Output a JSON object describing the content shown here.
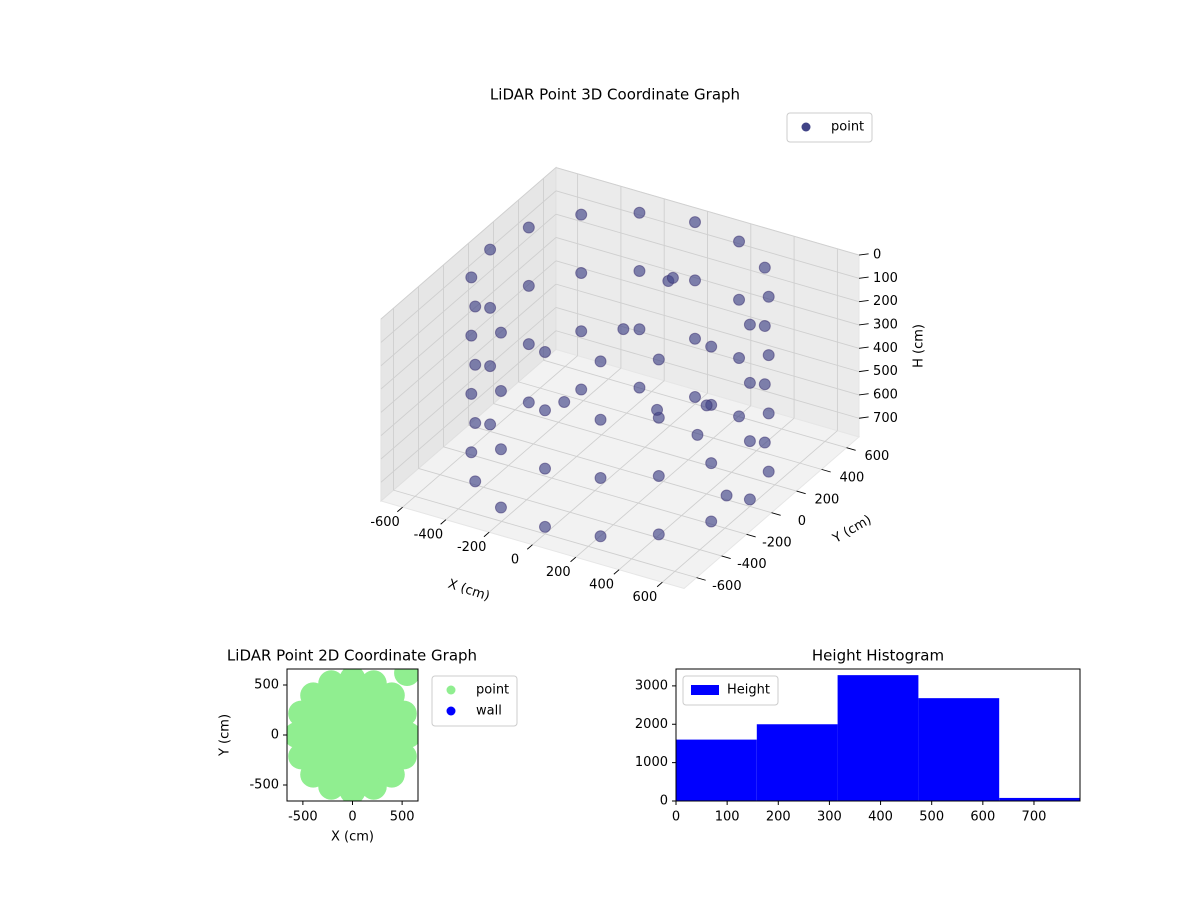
{
  "chart_data": [
    {
      "type": "scatter3d",
      "title": "LiDAR Point 3D Coordinate Graph",
      "x_label": "X (cm)",
      "y_label": "Y (cm)",
      "z_label": "H (cm)",
      "xlim": [
        -700,
        700
      ],
      "ylim": [
        -700,
        700
      ],
      "zlim": [
        0,
        780
      ],
      "z_inverted": true,
      "xticks": [
        -600,
        -400,
        -200,
        0,
        200,
        400,
        600
      ],
      "yticks": [
        -600,
        -400,
        -200,
        0,
        200,
        400,
        600
      ],
      "zticks": [
        0,
        100,
        200,
        300,
        400,
        500,
        600,
        700
      ],
      "grid": true,
      "legend": "upper right",
      "series": [
        {
          "name": "point",
          "color": "#414487",
          "x": [
            600,
            554,
            424,
            230,
            0,
            -230,
            -424,
            -554,
            -600,
            -554,
            -424,
            -230,
            0,
            230,
            424,
            554,
            600,
            554,
            424,
            230,
            0,
            -230,
            -424,
            -554,
            -600,
            -554,
            -424,
            -230,
            0,
            230,
            424,
            554,
            600,
            554,
            424,
            230,
            0,
            -230,
            -424,
            -554,
            -600,
            -554,
            -424,
            -230,
            0,
            230,
            424,
            554,
            600,
            554,
            424,
            230,
            0,
            -230,
            -424,
            -554,
            -600,
            -554,
            -424,
            -230,
            0,
            230,
            424,
            554,
            -100,
            50,
            100,
            200,
            300,
            -200,
            400,
            550
          ],
          "y": [
            0,
            230,
            424,
            554,
            600,
            554,
            424,
            230,
            0,
            -230,
            -424,
            -554,
            -600,
            -554,
            -424,
            -230,
            0,
            230,
            424,
            554,
            600,
            554,
            424,
            230,
            0,
            -230,
            -424,
            -554,
            -600,
            -554,
            -424,
            -230,
            0,
            230,
            424,
            554,
            600,
            554,
            424,
            230,
            0,
            -230,
            -424,
            -554,
            -600,
            -554,
            -424,
            -230,
            0,
            230,
            424,
            554,
            600,
            554,
            424,
            230,
            0,
            -230,
            -424,
            -554,
            -600,
            -554,
            -424,
            -230,
            200,
            300,
            250,
            -50,
            100,
            -100,
            0,
            -100
          ],
          "z": [
            0,
            0,
            0,
            0,
            0,
            0,
            0,
            0,
            0,
            0,
            0,
            0,
            0,
            0,
            0,
            0,
            250,
            250,
            250,
            250,
            250,
            250,
            250,
            250,
            250,
            250,
            250,
            250,
            250,
            250,
            250,
            250,
            500,
            500,
            500,
            500,
            500,
            500,
            500,
            500,
            500,
            500,
            500,
            500,
            500,
            500,
            500,
            500,
            750,
            750,
            750,
            750,
            750,
            750,
            750,
            750,
            750,
            750,
            750,
            750,
            750,
            750,
            750,
            750,
            300,
            100,
            50,
            450,
            600,
            500,
            400,
            700
          ]
        }
      ]
    },
    {
      "type": "scatter",
      "title": "LiDAR Point 2D Coordinate Graph",
      "x_label": "X (cm)",
      "y_label": "Y (cm)",
      "xlim": [
        -660,
        660
      ],
      "ylim": [
        -660,
        660
      ],
      "xticks": [
        -500,
        0,
        500
      ],
      "yticks": [
        -500,
        0,
        500
      ],
      "legend": "outside upper right",
      "series": [
        {
          "name": "point",
          "color": "#90ee90",
          "x": [
            560,
            517,
            396,
            214,
            0,
            -214,
            -396,
            -517,
            -560,
            -517,
            -396,
            -214,
            0,
            214,
            396,
            517,
            380,
            329,
            190,
            0,
            -190,
            -329,
            -380,
            -329,
            -190,
            0,
            190,
            329,
            200,
            100,
            -100,
            -200,
            -100,
            100,
            0,
            550
          ],
          "y": [
            0,
            214,
            396,
            517,
            560,
            517,
            396,
            214,
            0,
            -214,
            -396,
            -517,
            -560,
            -517,
            -396,
            -214,
            0,
            190,
            329,
            380,
            329,
            190,
            0,
            -190,
            -329,
            -380,
            -329,
            -190,
            0,
            173,
            173,
            0,
            -173,
            -173,
            0,
            620
          ]
        },
        {
          "name": "wall",
          "color": "#0000ff",
          "x": [],
          "y": []
        }
      ]
    },
    {
      "type": "histogram",
      "title": "Height Histogram",
      "bins": [
        0,
        158,
        316,
        474,
        632,
        790
      ],
      "xlim": [
        0,
        790
      ],
      "ylim": [
        0,
        3440
      ],
      "xticks": [
        0,
        100,
        200,
        300,
        400,
        500,
        600,
        700
      ],
      "yticks": [
        0,
        1000,
        2000,
        3000
      ],
      "legend": "upper left",
      "series": [
        {
          "name": "Height",
          "color": "#0000ff",
          "values": [
            1600,
            2000,
            3280,
            2680,
            80
          ]
        }
      ]
    }
  ]
}
